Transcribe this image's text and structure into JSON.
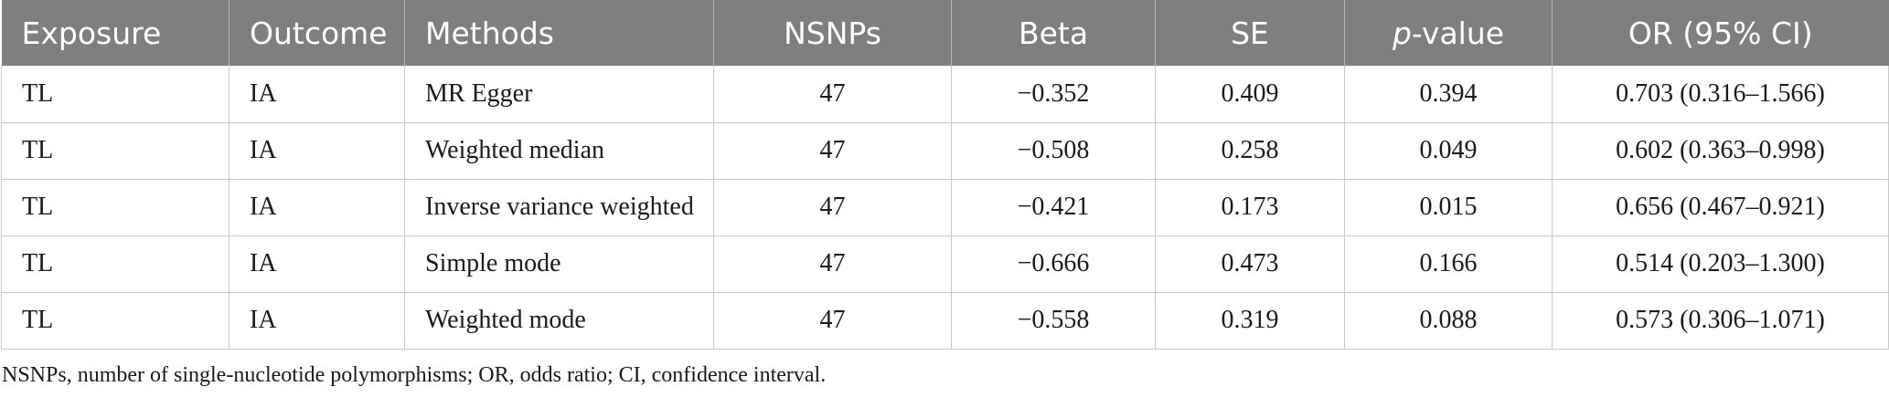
{
  "table": {
    "headers": {
      "exposure": "Exposure",
      "outcome": "Outcome",
      "methods": "Methods",
      "nsnps": "NSNPs",
      "beta": "Beta",
      "se": "SE",
      "p_italic": "p",
      "p_rest": "-value",
      "or": "OR (95% CI)"
    },
    "rows": [
      {
        "exposure": "TL",
        "outcome": "IA",
        "method": "MR Egger",
        "nsnps": "47",
        "beta": "−0.352",
        "se": "0.409",
        "p": "0.394",
        "or": "0.703 (0.316–1.566)"
      },
      {
        "exposure": "TL",
        "outcome": "IA",
        "method": "Weighted median",
        "nsnps": "47",
        "beta": "−0.508",
        "se": "0.258",
        "p": "0.049",
        "or": "0.602 (0.363–0.998)"
      },
      {
        "exposure": "TL",
        "outcome": "IA",
        "method": "Inverse variance weighted",
        "nsnps": "47",
        "beta": "−0.421",
        "se": "0.173",
        "p": "0.015",
        "or": "0.656 (0.467–0.921)"
      },
      {
        "exposure": "TL",
        "outcome": "IA",
        "method": "Simple mode",
        "nsnps": "47",
        "beta": "−0.666",
        "se": "0.473",
        "p": "0.166",
        "or": "0.514 (0.203–1.300)"
      },
      {
        "exposure": "TL",
        "outcome": "IA",
        "method": "Weighted mode",
        "nsnps": "47",
        "beta": "−0.558",
        "se": "0.319",
        "p": "0.088",
        "or": "0.573 (0.306–1.071)"
      }
    ]
  },
  "footnote": "NSNPs, number of single-nucleotide polymorphisms; OR, odds ratio; CI, confidence interval."
}
